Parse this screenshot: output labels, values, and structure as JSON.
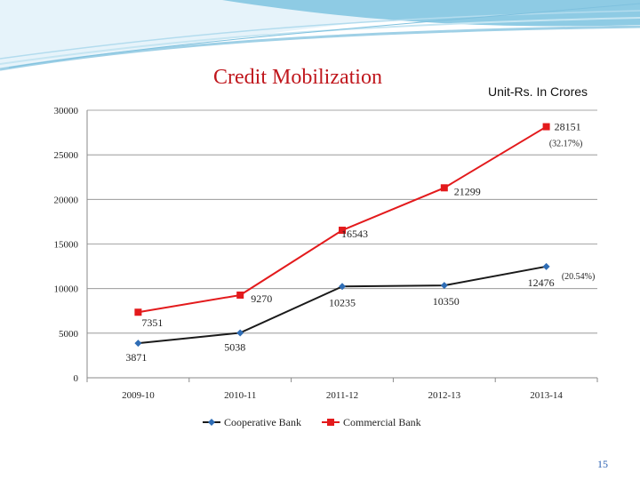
{
  "slide": {
    "title": "Credit Mobilization",
    "unit": "Unit-Rs. In Crores",
    "page_number": "15"
  },
  "colors": {
    "cooperative": "#1a1a1a",
    "commercial": "#e31a1c",
    "marker_cooperative": "#2f6db5",
    "header_wave": "#9fd0e6"
  },
  "chart_data": {
    "type": "line",
    "title": "",
    "xlabel": "",
    "ylabel": "",
    "categories": [
      "2009-10",
      "2010-11",
      "2011-12",
      "2012-13",
      "2013-14"
    ],
    "ylim": [
      0,
      30000
    ],
    "yticks": [
      0,
      5000,
      10000,
      15000,
      20000,
      25000,
      30000
    ],
    "grid": true,
    "legend_position": "bottom",
    "series": [
      {
        "name": "Cooperative Bank",
        "marker": "diamond",
        "values": [
          3871,
          5038,
          10235,
          10350,
          12476
        ],
        "labels": [
          "3871",
          "5038",
          "10235",
          "10350",
          "12476"
        ],
        "annotation": {
          "index": 4,
          "text": "(20.54%)"
        }
      },
      {
        "name": "Commercial Bank",
        "marker": "square",
        "values": [
          7351,
          9270,
          16543,
          21299,
          28151
        ],
        "labels": [
          "7351",
          "9270",
          "16543",
          "21299",
          "28151"
        ],
        "annotation": {
          "index": 4,
          "text": "(32.17%)"
        }
      }
    ]
  }
}
